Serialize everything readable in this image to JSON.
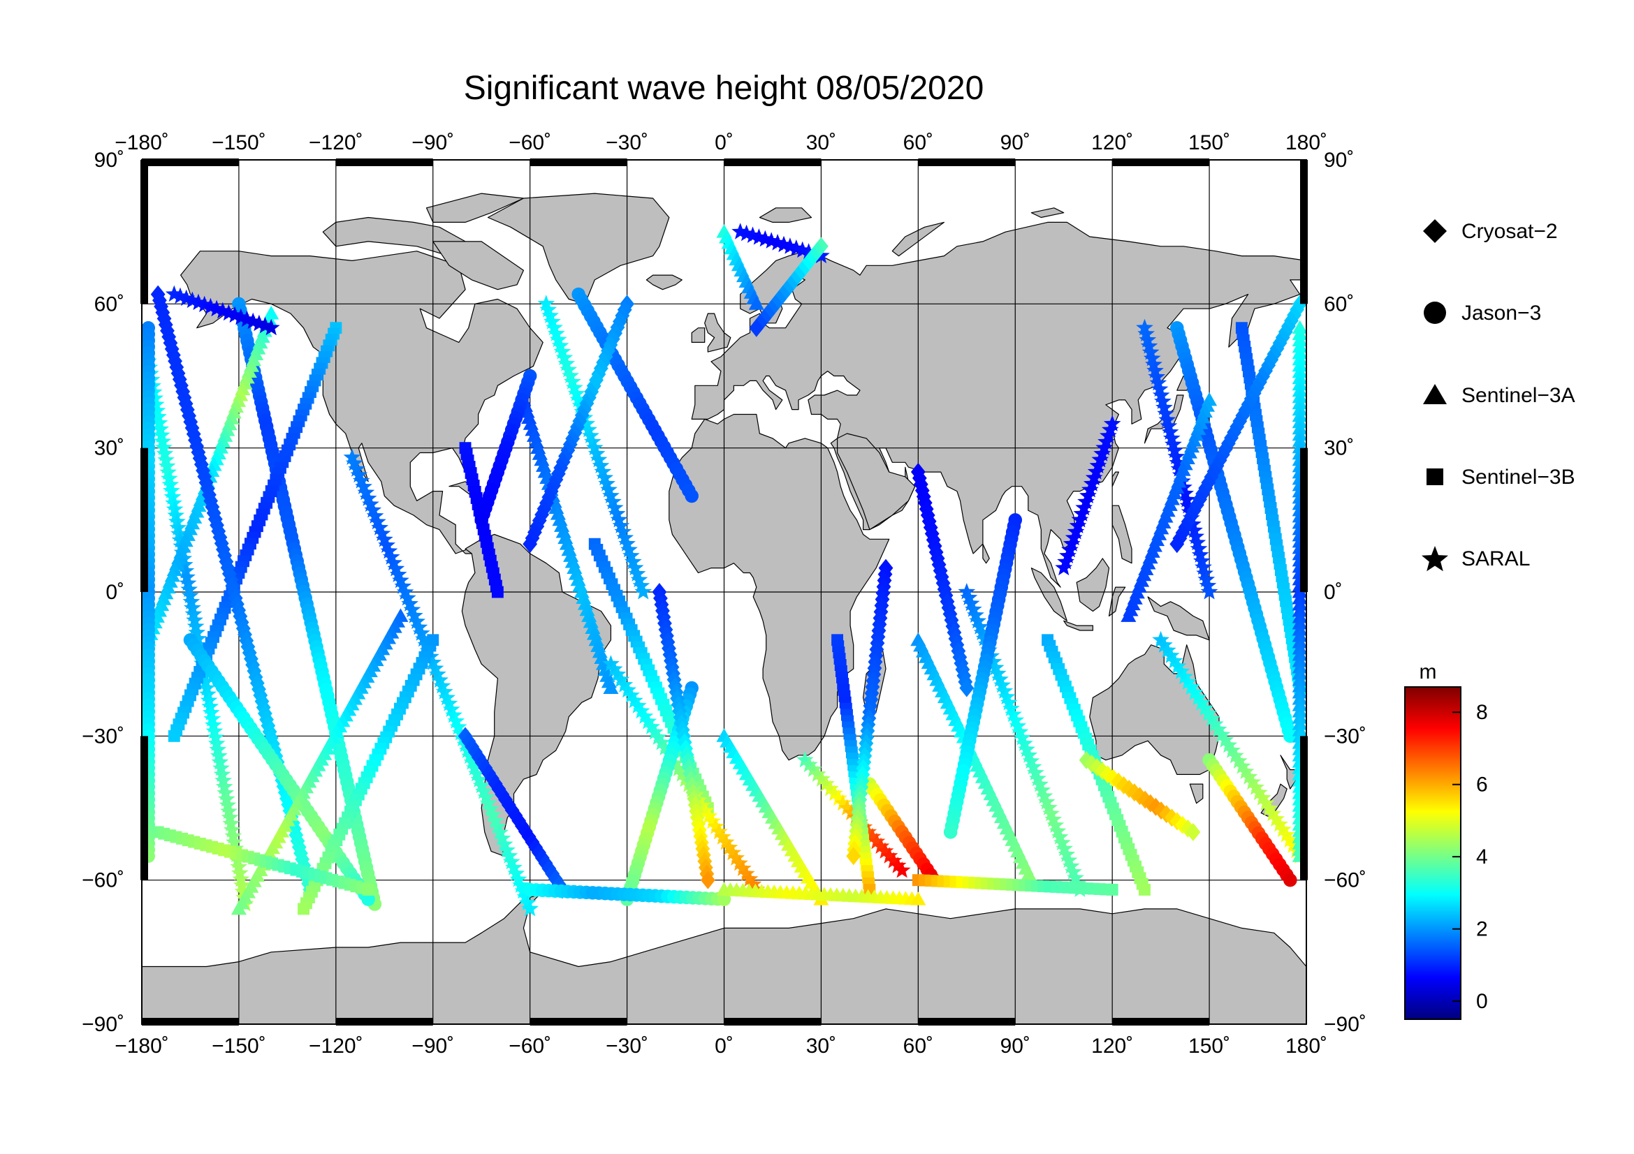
{
  "chart_data": {
    "type": "scatter",
    "title": "Significant wave height 08/05/2020",
    "map": {
      "projection": "equirectangular",
      "lon_range": [
        -180,
        180
      ],
      "lat_range": [
        -90,
        90
      ],
      "land_color": "#bebebe",
      "ocean_color": "#ffffff"
    },
    "lon_ticks": [
      -180,
      -150,
      -120,
      -90,
      -60,
      -30,
      0,
      30,
      60,
      90,
      120,
      150,
      180
    ],
    "lat_ticks": [
      -90,
      -60,
      -30,
      0,
      30,
      60,
      90
    ],
    "lon_tick_labels": [
      "−180˚",
      "−150˚",
      "−120˚",
      "−90˚",
      "−60˚",
      "−30˚",
      "0˚",
      "30˚",
      "60˚",
      "90˚",
      "120˚",
      "150˚",
      "180˚"
    ],
    "lat_tick_labels": [
      "−90˚",
      "−60˚",
      "−30˚",
      "0˚",
      "30˚",
      "60˚",
      "90˚"
    ],
    "grid": true,
    "legend": {
      "placement": "right",
      "entries": [
        {
          "name": "Cryosat−2",
          "symbol": "diamond"
        },
        {
          "name": "Jason−3",
          "symbol": "circle"
        },
        {
          "name": "Sentinel−3A",
          "symbol": "triangle"
        },
        {
          "name": "Sentinel−3B",
          "symbol": "square"
        },
        {
          "name": "SARAL",
          "symbol": "star"
        }
      ]
    },
    "colorbar": {
      "unit": "m",
      "range": [
        -0.5,
        8.7
      ],
      "tick_values": [
        0,
        2,
        4,
        6,
        8
      ],
      "tick_labels": [
        "0",
        "2",
        "4",
        "6",
        "8"
      ],
      "colormap": [
        "#00007f",
        "#0000ff",
        "#007fff",
        "#00ffff",
        "#7fff7f",
        "#ffff00",
        "#ff7f00",
        "#ff0000",
        "#7f0000"
      ]
    },
    "tracks": [
      {
        "mission": "SARAL",
        "start": [
          -178,
          48
        ],
        "end": [
          -148,
          -65
        ],
        "h": [
          2.8,
          3.2,
          2.0,
          2.6,
          3.8,
          4.6
        ]
      },
      {
        "mission": "Jason-3",
        "start": [
          -150,
          60
        ],
        "end": [
          -108,
          -65
        ],
        "h": [
          2.0,
          1.2,
          1.5,
          2.8,
          3.4,
          4.2
        ]
      },
      {
        "mission": "Sentinel-3A",
        "start": [
          -140,
          58
        ],
        "end": [
          -178,
          -10
        ],
        "h": [
          3.0,
          4.5,
          2.6,
          2.2,
          2.8
        ]
      },
      {
        "mission": "Sentinel-3B",
        "start": [
          -120,
          55
        ],
        "end": [
          -170,
          -30
        ],
        "h": [
          2.4,
          1.4,
          1.0,
          1.8,
          2.5
        ]
      },
      {
        "mission": "Cryosat-2",
        "start": [
          -175,
          62
        ],
        "end": [
          -128,
          -62
        ],
        "h": [
          1.0,
          1.2,
          1.6,
          2.6,
          3.4
        ]
      },
      {
        "mission": "SARAL",
        "start": [
          -115,
          28
        ],
        "end": [
          -60,
          -66
        ],
        "h": [
          1.8,
          1.4,
          2.0,
          3.0,
          3.6,
          2.8
        ]
      },
      {
        "mission": "Jason-3",
        "start": [
          -165,
          -10
        ],
        "end": [
          -110,
          -64
        ],
        "h": [
          2.2,
          2.8,
          3.6,
          4.2,
          3.2
        ]
      },
      {
        "mission": "Sentinel-3A",
        "start": [
          -100,
          -5
        ],
        "end": [
          -150,
          -66
        ],
        "h": [
          1.6,
          2.4,
          3.4,
          4.6,
          4.0
        ]
      },
      {
        "mission": "Sentinel-3B",
        "start": [
          -90,
          -10
        ],
        "end": [
          -130,
          -66
        ],
        "h": [
          2.0,
          2.6,
          3.6,
          4.4
        ]
      },
      {
        "mission": "Cryosat-2",
        "start": [
          -80,
          -30
        ],
        "end": [
          -50,
          -62
        ],
        "h": [
          1.5,
          1.0,
          0.8,
          1.6
        ]
      },
      {
        "mission": "SARAL",
        "start": [
          -55,
          60
        ],
        "end": [
          -25,
          0
        ],
        "h": [
          2.8,
          3.2,
          2.4,
          1.8,
          2.2
        ]
      },
      {
        "mission": "Jason-3",
        "start": [
          -45,
          62
        ],
        "end": [
          -10,
          20
        ],
        "h": [
          2.0,
          1.6,
          1.2,
          1.4
        ]
      },
      {
        "mission": "Sentinel-3A",
        "start": [
          -62,
          40
        ],
        "end": [
          -35,
          -20
        ],
        "h": [
          1.2,
          1.8,
          2.4,
          2.0
        ]
      },
      {
        "mission": "Sentinel-3B",
        "start": [
          -40,
          10
        ],
        "end": [
          -5,
          -45
        ],
        "h": [
          1.6,
          2.0,
          2.8,
          3.4,
          4.4
        ]
      },
      {
        "mission": "SARAL",
        "start": [
          -35,
          -15
        ],
        "end": [
          10,
          -62
        ],
        "h": [
          2.4,
          3.0,
          4.2,
          5.6,
          6.4
        ]
      },
      {
        "mission": "Jason-3",
        "start": [
          -10,
          -20
        ],
        "end": [
          -30,
          -64
        ],
        "h": [
          2.0,
          3.2,
          4.6,
          3.8
        ]
      },
      {
        "mission": "Cryosat-2",
        "start": [
          -20,
          0
        ],
        "end": [
          -5,
          -60
        ],
        "h": [
          1.0,
          1.6,
          2.6,
          4.8,
          6.2
        ]
      },
      {
        "mission": "Sentinel-3A",
        "start": [
          0,
          -30
        ],
        "end": [
          30,
          -64
        ],
        "h": [
          2.6,
          3.4,
          4.8,
          5.4
        ]
      },
      {
        "mission": "SARAL",
        "start": [
          25,
          -35
        ],
        "end": [
          55,
          -58
        ],
        "h": [
          3.6,
          5.2,
          6.8,
          7.6
        ]
      },
      {
        "mission": "Jason-3",
        "start": [
          45,
          -40
        ],
        "end": [
          65,
          -60
        ],
        "h": [
          4.8,
          6.6,
          7.8
        ]
      },
      {
        "mission": "Sentinel-3B",
        "start": [
          35,
          -10
        ],
        "end": [
          45,
          -62
        ],
        "h": [
          1.2,
          1.0,
          2.4,
          4.2,
          6.0
        ]
      },
      {
        "mission": "Cryosat-2",
        "start": [
          50,
          5
        ],
        "end": [
          40,
          -55
        ],
        "h": [
          0.8,
          1.2,
          1.6,
          3.2,
          5.6
        ]
      },
      {
        "mission": "Sentinel-3A",
        "start": [
          60,
          -10
        ],
        "end": [
          95,
          -60
        ],
        "h": [
          2.0,
          2.8,
          3.6,
          4.2
        ]
      },
      {
        "mission": "SARAL",
        "start": [
          75,
          0
        ],
        "end": [
          110,
          -62
        ],
        "h": [
          1.6,
          2.4,
          3.2,
          4.0,
          3.6
        ]
      },
      {
        "mission": "Jason-3",
        "start": [
          90,
          15
        ],
        "end": [
          70,
          -50
        ],
        "h": [
          1.0,
          1.6,
          2.6,
          3.4
        ]
      },
      {
        "mission": "Sentinel-3B",
        "start": [
          100,
          -10
        ],
        "end": [
          130,
          -62
        ],
        "h": [
          2.2,
          3.0,
          3.8,
          4.4
        ]
      },
      {
        "mission": "Cryosat-2",
        "start": [
          112,
          -35
        ],
        "end": [
          145,
          -50
        ],
        "h": [
          4.4,
          5.6,
          6.2,
          4.8
        ]
      },
      {
        "mission": "SARAL",
        "start": [
          130,
          55
        ],
        "end": [
          150,
          0
        ],
        "h": [
          1.6,
          1.2,
          0.8,
          1.4
        ]
      },
      {
        "mission": "Jason-3",
        "start": [
          140,
          55
        ],
        "end": [
          175,
          -30
        ],
        "h": [
          2.0,
          1.4,
          1.8,
          2.4,
          3.0
        ]
      },
      {
        "mission": "Sentinel-3A",
        "start": [
          150,
          40
        ],
        "end": [
          125,
          -5
        ],
        "h": [
          2.2,
          1.6,
          1.4,
          1.2
        ]
      },
      {
        "mission": "Sentinel-3B",
        "start": [
          160,
          55
        ],
        "end": [
          178,
          -20
        ],
        "h": [
          1.4,
          1.8,
          2.4,
          2.8
        ]
      },
      {
        "mission": "Cryosat-2",
        "start": [
          178,
          60
        ],
        "end": [
          140,
          10
        ],
        "h": [
          2.6,
          1.8,
          1.4,
          1.0
        ]
      },
      {
        "mission": "SARAL",
        "start": [
          135,
          -10
        ],
        "end": [
          178,
          -55
        ],
        "h": [
          2.4,
          3.0,
          3.8,
          4.6,
          5.4
        ]
      },
      {
        "mission": "Jason-3",
        "start": [
          150,
          -35
        ],
        "end": [
          175,
          -60
        ],
        "h": [
          4.2,
          5.8,
          7.2,
          7.8
        ]
      },
      {
        "mission": "SARAL",
        "start": [
          -170,
          62
        ],
        "end": [
          -140,
          55
        ],
        "h": [
          1.0,
          0.6,
          0.4
        ]
      },
      {
        "mission": "Sentinel-3A",
        "start": [
          0,
          75
        ],
        "end": [
          10,
          60
        ],
        "h": [
          3.2,
          2.4,
          1.6
        ]
      },
      {
        "mission": "SARAL",
        "start": [
          5,
          75
        ],
        "end": [
          30,
          70
        ],
        "h": [
          0.8,
          0.6,
          0.9
        ]
      },
      {
        "mission": "Cryosat-2",
        "start": [
          30,
          72
        ],
        "end": [
          10,
          55
        ],
        "h": [
          3.6,
          2.2,
          1.2
        ]
      },
      {
        "mission": "Sentinel-3B",
        "start": [
          -175,
          -50
        ],
        "end": [
          -110,
          -62
        ],
        "h": [
          4.0,
          4.6,
          3.4,
          4.2
        ]
      },
      {
        "mission": "Jason-3",
        "start": [
          -60,
          -62
        ],
        "end": [
          0,
          -64
        ],
        "h": [
          3.0,
          2.2,
          2.6,
          4.4
        ]
      },
      {
        "mission": "Sentinel-3A",
        "start": [
          0,
          -62
        ],
        "end": [
          60,
          -64
        ],
        "h": [
          4.6,
          5.2,
          4.8,
          5.4
        ]
      },
      {
        "mission": "Sentinel-3B",
        "start": [
          60,
          -60
        ],
        "end": [
          120,
          -62
        ],
        "h": [
          6.2,
          4.8,
          3.6,
          3.8
        ]
      },
      {
        "mission": "Cryosat-2",
        "start": [
          -30,
          60
        ],
        "end": [
          -60,
          10
        ],
        "h": [
          1.8,
          2.4,
          1.4,
          1.0
        ]
      },
      {
        "mission": "Sentinel-3B",
        "start": [
          -80,
          30
        ],
        "end": [
          -70,
          0
        ],
        "h": [
          0.8,
          0.6,
          0.7
        ]
      },
      {
        "mission": "Jason-3",
        "start": [
          -60,
          45
        ],
        "end": [
          -75,
          15
        ],
        "h": [
          1.4,
          0.8,
          0.6
        ]
      },
      {
        "mission": "Cryosat-2",
        "start": [
          60,
          25
        ],
        "end": [
          75,
          -20
        ],
        "h": [
          0.6,
          0.8,
          1.2,
          1.8
        ]
      },
      {
        "mission": "SARAL",
        "start": [
          120,
          35
        ],
        "end": [
          105,
          5
        ],
        "h": [
          0.8,
          0.6,
          0.7
        ]
      },
      {
        "mission": "Jason-3",
        "start": [
          -178,
          55
        ],
        "end": [
          -178,
          -55
        ],
        "h": [
          1.8,
          2.6,
          2.0,
          2.8,
          4.2
        ]
      },
      {
        "mission": "Sentinel-3A",
        "start": [
          178,
          55
        ],
        "end": [
          178,
          -55
        ],
        "h": [
          3.2,
          2.2,
          1.2,
          2.4,
          3.6
        ]
      }
    ]
  }
}
